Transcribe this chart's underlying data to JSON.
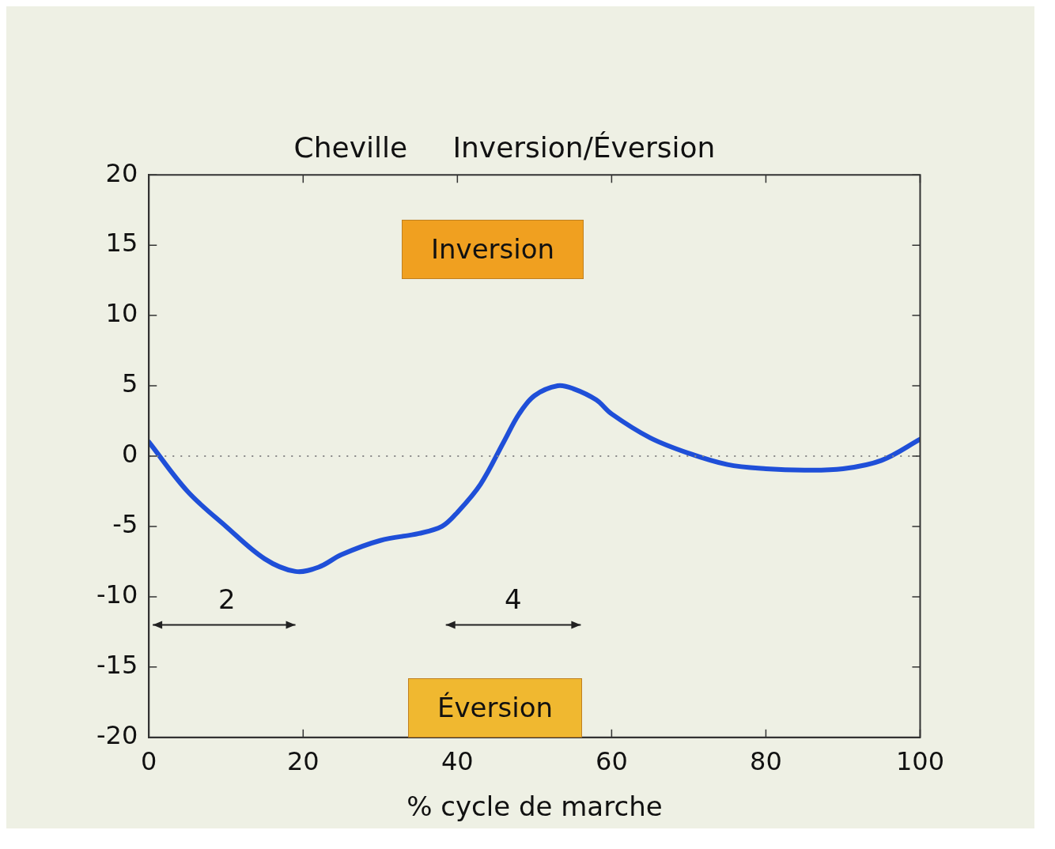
{
  "chart_data": {
    "type": "line",
    "title": "Cheville     Inversion/Éversion",
    "xlabel": "% cycle de marche",
    "x": [
      0,
      5,
      10,
      15,
      19,
      22,
      25,
      30,
      35,
      38,
      40,
      43,
      46,
      48,
      50,
      53,
      55,
      58,
      60,
      65,
      70,
      75,
      80,
      85,
      90,
      95,
      100
    ],
    "series": [
      {
        "color": "#1f4fd8",
        "values": [
          1,
          -2.5,
          -5,
          -7.3,
          -8.2,
          -7.9,
          -7,
          -6,
          -5.5,
          -5,
          -4,
          -2,
          1,
          3,
          4.3,
          5,
          4.8,
          4,
          3,
          1.3,
          0.2,
          -0.6,
          -0.9,
          -1,
          -0.9,
          -0.3,
          1.2
        ]
      }
    ],
    "xlim": [
      0,
      100
    ],
    "xticks": [
      0,
      20,
      40,
      60,
      80,
      100
    ],
    "ylim": [
      -20,
      20
    ],
    "yticks": [
      -20,
      -15,
      -10,
      -5,
      0,
      5,
      10,
      15,
      20
    ],
    "ref_lines": [
      {
        "axis": "y",
        "value": 0,
        "line_style": "dotted",
        "color": "#888888"
      }
    ],
    "annotations": [
      "Inversion",
      "Éversion",
      "2",
      "4"
    ],
    "grid": false,
    "legend": false,
    "marker": "none",
    "line_style": "solid"
  }
}
